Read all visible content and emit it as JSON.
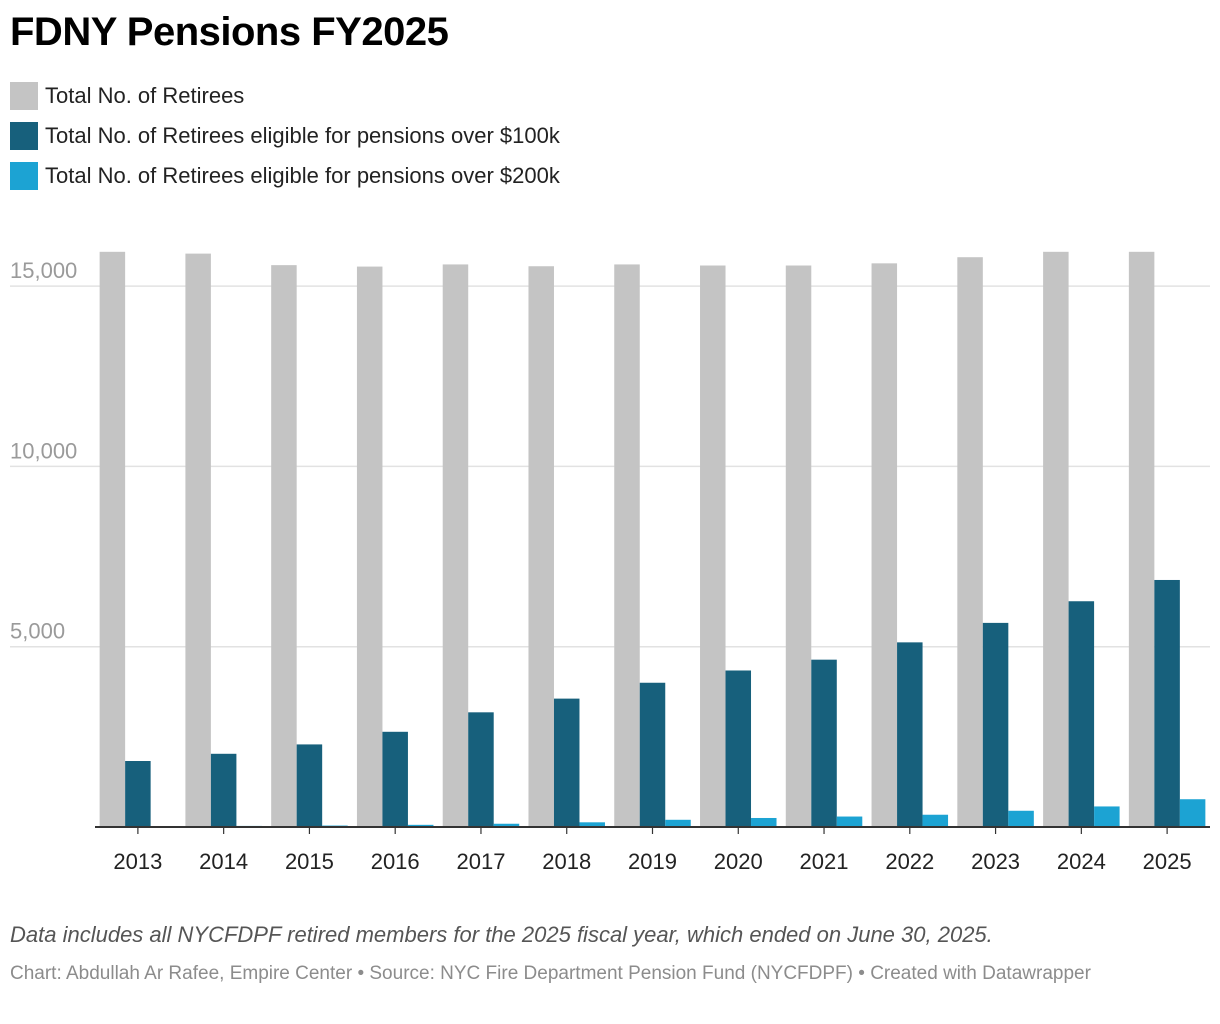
{
  "title": "FDNY Pensions FY2025",
  "note": "Data includes all NYCFDPF retired members for the 2025 fiscal year, which ended on June 30, 2025.",
  "credits": "Chart: Abdullah Ar Rafee, Empire Center • Source: NYC Fire Department Pension Fund (NYCFDPF) • Created with Datawrapper",
  "chart_data": {
    "type": "bar",
    "categories": [
      "2013",
      "2014",
      "2015",
      "2016",
      "2017",
      "2018",
      "2019",
      "2020",
      "2021",
      "2022",
      "2023",
      "2024",
      "2025"
    ],
    "series": [
      {
        "name": "Total No. of Retirees",
        "color": "#c4c4c4",
        "values": [
          15950,
          15900,
          15580,
          15540,
          15600,
          15550,
          15600,
          15570,
          15570,
          15630,
          15800,
          15950,
          15950
        ]
      },
      {
        "name": "Total No. of Retirees eligible for pensions over $100k",
        "color": "#17607c",
        "values": [
          1830,
          2030,
          2290,
          2640,
          3180,
          3560,
          4000,
          4340,
          4640,
          5120,
          5660,
          6260,
          6850
        ]
      },
      {
        "name": "Total No. of Retirees eligible for pensions over $200k",
        "color": "#1ca3d3",
        "values": [
          20,
          30,
          40,
          60,
          90,
          130,
          200,
          250,
          290,
          340,
          450,
          570,
          770
        ]
      }
    ],
    "yticks": [
      {
        "value": 5000,
        "label": "5,000"
      },
      {
        "value": 10000,
        "label": "10,000"
      },
      {
        "value": 15000,
        "label": "15,000"
      }
    ],
    "ylim": [
      0,
      16000
    ],
    "grid": true,
    "legend_position": "top-left"
  }
}
